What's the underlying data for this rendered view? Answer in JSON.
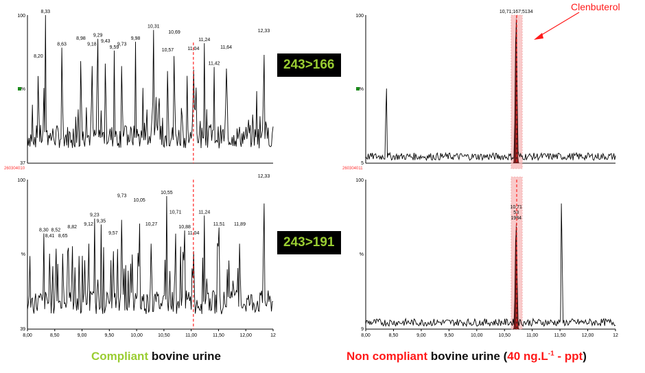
{
  "chart_data": [
    {
      "type": "line",
      "sample_id": "260304010",
      "ylabel": "%",
      "ytick_labels": [
        "100",
        "37"
      ],
      "transition": "243>166",
      "xlim": [
        8.0,
        12.5
      ],
      "peak_labels": [
        {
          "x": 8.2,
          "label": "8,20",
          "intensity": 70
        },
        {
          "x": 8.33,
          "label": "8,33",
          "intensity": 100
        },
        {
          "x": 8.63,
          "label": "8,63",
          "intensity": 78
        },
        {
          "x": 8.98,
          "label": "8,98",
          "intensity": 82
        },
        {
          "x": 9.18,
          "label": "9,18",
          "intensity": 78
        },
        {
          "x": 9.29,
          "label": "9,29",
          "intensity": 84
        },
        {
          "x": 9.43,
          "label": "9,43",
          "intensity": 80
        },
        {
          "x": 9.59,
          "label": "9,59",
          "intensity": 76
        },
        {
          "x": 9.73,
          "label": "9,73",
          "intensity": 78
        },
        {
          "x": 9.98,
          "label": "9,98",
          "intensity": 82
        },
        {
          "x": 10.31,
          "label": "10,31",
          "intensity": 90
        },
        {
          "x": 10.57,
          "label": "10,57",
          "intensity": 74
        },
        {
          "x": 10.69,
          "label": "10,69",
          "intensity": 86
        },
        {
          "x": 11.04,
          "label": "11,04",
          "intensity": 75
        },
        {
          "x": 11.24,
          "label": "11,24",
          "intensity": 81
        },
        {
          "x": 11.42,
          "label": "11,42",
          "intensity": 65
        },
        {
          "x": 11.64,
          "label": "11,64",
          "intensity": 76
        },
        {
          "x": 12.33,
          "label": "12,33",
          "intensity": 87
        }
      ]
    },
    {
      "type": "line",
      "ylabel": "%",
      "ytick_labels": [
        "100",
        "39"
      ],
      "transition": "243>191",
      "xlim": [
        8.0,
        12.5
      ],
      "xticks": [
        "8,00",
        "8,50",
        "9,00",
        "9,50",
        "10,00",
        "10,50",
        "11,00",
        "11,50",
        "12,00",
        "12"
      ],
      "peak_labels": [
        {
          "x": 8.3,
          "label": "8,30",
          "intensity": 64
        },
        {
          "x": 8.41,
          "label": "8,41",
          "intensity": 60
        },
        {
          "x": 8.52,
          "label": "8,52",
          "intensity": 64
        },
        {
          "x": 8.65,
          "label": "8,65",
          "intensity": 60
        },
        {
          "x": 8.82,
          "label": "8,82",
          "intensity": 66
        },
        {
          "x": 9.12,
          "label": "9,12",
          "intensity": 68
        },
        {
          "x": 9.23,
          "label": "9,23",
          "intensity": 74
        },
        {
          "x": 9.35,
          "label": "9,35",
          "intensity": 70
        },
        {
          "x": 9.57,
          "label": "9,57",
          "intensity": 62
        },
        {
          "x": 9.73,
          "label": "9,73",
          "intensity": 87
        },
        {
          "x": 10.05,
          "label": "10,05",
          "intensity": 84
        },
        {
          "x": 10.27,
          "label": "10,27",
          "intensity": 68
        },
        {
          "x": 10.55,
          "label": "10,55",
          "intensity": 89
        },
        {
          "x": 10.71,
          "label": "10,71",
          "intensity": 76
        },
        {
          "x": 10.88,
          "label": "10,88",
          "intensity": 66
        },
        {
          "x": 11.04,
          "label": "11,04",
          "intensity": 62
        },
        {
          "x": 11.24,
          "label": "11,24",
          "intensity": 76
        },
        {
          "x": 11.51,
          "label": "11,51",
          "intensity": 68
        },
        {
          "x": 11.89,
          "label": "11,89",
          "intensity": 68
        },
        {
          "x": 12.33,
          "label": "12,33",
          "intensity": 100
        }
      ]
    },
    {
      "type": "line",
      "sample_id": "260304011",
      "ylabel": "%",
      "ytick_labels": [
        "100",
        "5"
      ],
      "transition": "243>166",
      "xlim": [
        8.0,
        12.5
      ],
      "peak_labels": [
        {
          "x": 10.71,
          "label": "10,71;167;5134",
          "intensity": 100
        }
      ],
      "extra_peaks": [
        {
          "x": 8.37,
          "intensity": 60
        }
      ],
      "annotation": "Clenbuterol"
    },
    {
      "type": "line",
      "ylabel": "%",
      "ytick_labels": [
        "100",
        "9"
      ],
      "transition": "243>191",
      "xlim": [
        8.0,
        12.5
      ],
      "xticks": [
        "8,00",
        "8,50",
        "9,00",
        "9,50",
        "10,00",
        "10,50",
        "11,00",
        "11,50",
        "12,00",
        "12"
      ],
      "peak_labels": [
        {
          "x": 10.71,
          "label": "10,71\n53\n1984",
          "intensity": 72
        }
      ],
      "extra_peaks": [
        {
          "x": 11.53,
          "intensity": 100
        }
      ]
    }
  ],
  "badges": [
    "243>166",
    "243>191"
  ],
  "captions": {
    "left_highlight": "Compliant",
    "left_rest": " bovine urine",
    "right_highlight": "Non compliant",
    "right_middle": " bovine urine (",
    "right_conc": "40 ng.L",
    "right_sup": "-1",
    "right_dash": " - ",
    "right_ppt": "ppt",
    "right_close": ")"
  },
  "annotation": "Clenbuterol",
  "colors": {
    "trace": "#000000",
    "marker": "#ff0000",
    "badge_text": "#9acd32",
    "highlight": "#ff1a1a"
  }
}
